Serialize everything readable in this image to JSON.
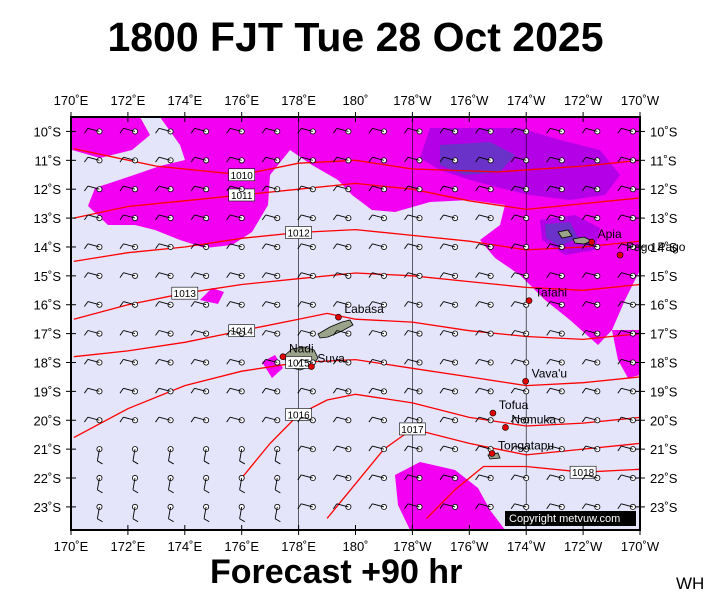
{
  "title": "1800 FJT Tue 28 Oct 2025",
  "footer": "Forecast +90 hr",
  "corner_tag": "WH",
  "copyright": "Copyright metvuw.com",
  "colors": {
    "background": "#e4e4fa",
    "rain_light": "#f300f3",
    "rain_medium": "#b400e6",
    "rain_heavy": "#6a32c8",
    "isobar": "#ff0000",
    "land": "#9aa38a",
    "frame": "#000000"
  },
  "lon_labels": [
    "170˚E",
    "172˚E",
    "174˚E",
    "176˚E",
    "178˚E",
    "180˚",
    "178˚W",
    "176˚W",
    "174˚W",
    "172˚W",
    "170˚W"
  ],
  "lat_labels": [
    "10˚S",
    "11˚S",
    "12˚S",
    "13˚S",
    "14˚S",
    "15˚S",
    "16˚S",
    "17˚S",
    "18˚S",
    "19˚S",
    "20˚S",
    "21˚S",
    "22˚S",
    "23˚S"
  ],
  "isobars": [
    {
      "value": "1010",
      "pts": [
        [
          170.1,
          -10.6
        ],
        [
          173,
          -11.2
        ],
        [
          176,
          -11.5
        ],
        [
          178,
          -11.1
        ],
        [
          180,
          -11.0
        ],
        [
          182,
          -11.3
        ],
        [
          185,
          -11.4
        ],
        [
          188,
          -11.2
        ],
        [
          190,
          -11.0
        ]
      ]
    },
    {
      "value": "1011",
      "pts": [
        [
          170.1,
          -13.0
        ],
        [
          172,
          -12.6
        ],
        [
          174,
          -12.4
        ],
        [
          176,
          -12.2
        ],
        [
          178,
          -12.0
        ],
        [
          180,
          -11.8
        ],
        [
          182,
          -12.0
        ],
        [
          184,
          -12.4
        ],
        [
          186,
          -12.7
        ],
        [
          188,
          -12.5
        ],
        [
          190,
          -12.3
        ]
      ]
    },
    {
      "value": "1012",
      "pts": [
        [
          170.1,
          -14.5
        ],
        [
          172,
          -14.2
        ],
        [
          174,
          -14.0
        ],
        [
          176,
          -13.7
        ],
        [
          178,
          -13.5
        ],
        [
          180,
          -13.4
        ],
        [
          182,
          -13.6
        ],
        [
          184,
          -13.8
        ],
        [
          186,
          -14.1
        ],
        [
          188,
          -14.0
        ],
        [
          190,
          -13.8
        ]
      ]
    },
    {
      "value": "1013",
      "pts": [
        [
          170.1,
          -16.5
        ],
        [
          172,
          -16.0
        ],
        [
          174,
          -15.6
        ],
        [
          176,
          -15.3
        ],
        [
          178,
          -15.1
        ],
        [
          180,
          -14.9
        ],
        [
          182,
          -15.0
        ],
        [
          184,
          -15.2
        ],
        [
          186,
          -15.4
        ],
        [
          188,
          -15.5
        ],
        [
          190,
          -15.3
        ]
      ]
    },
    {
      "value": "1014",
      "pts": [
        [
          170.1,
          -17.8
        ],
        [
          172,
          -17.6
        ],
        [
          174,
          -17.3
        ],
        [
          176,
          -16.9
        ],
        [
          178,
          -16.5
        ],
        [
          179,
          -16.3
        ],
        [
          180,
          -16.5
        ],
        [
          182,
          -16.6
        ],
        [
          184,
          -16.9
        ],
        [
          186,
          -17.1
        ],
        [
          188,
          -17.2
        ],
        [
          190,
          -17.0
        ]
      ]
    },
    {
      "value": "1015",
      "pts": [
        [
          170.1,
          -20.6
        ],
        [
          172,
          -19.6
        ],
        [
          174,
          -18.8
        ],
        [
          176,
          -18.3
        ],
        [
          178,
          -18.0
        ],
        [
          180,
          -17.9
        ],
        [
          182,
          -18.2
        ],
        [
          184,
          -18.5
        ],
        [
          186,
          -18.8
        ],
        [
          188,
          -18.7
        ],
        [
          190,
          -18.5
        ]
      ]
    },
    {
      "value": "1016",
      "pts": [
        [
          176,
          -22.0
        ],
        [
          177,
          -20.8
        ],
        [
          178,
          -19.8
        ],
        [
          179,
          -19.3
        ],
        [
          180,
          -19.1
        ],
        [
          182,
          -19.4
        ],
        [
          184,
          -19.9
        ],
        [
          186,
          -20.2
        ],
        [
          188,
          -20.1
        ],
        [
          190,
          -19.9
        ]
      ]
    },
    {
      "value": "1017",
      "pts": [
        [
          179,
          -23.4
        ],
        [
          180,
          -22.2
        ],
        [
          181,
          -21.0
        ],
        [
          182,
          -20.3
        ],
        [
          184,
          -20.8
        ],
        [
          186,
          -21.2
        ],
        [
          188,
          -21.0
        ],
        [
          190,
          -20.8
        ]
      ]
    },
    {
      "value": "1018",
      "pts": [
        [
          182.5,
          -23.4
        ],
        [
          183.5,
          -22.4
        ],
        [
          184.5,
          -21.6
        ],
        [
          186,
          -21.6
        ],
        [
          188,
          -21.8
        ],
        [
          190,
          -21.7
        ]
      ]
    }
  ],
  "places": [
    {
      "name": "Apia",
      "lon": 188.3,
      "lat": -13.83
    },
    {
      "name": "Pago Pago",
      "lon": 189.3,
      "lat": -14.28
    },
    {
      "name": "Tafahi",
      "lon": 186.1,
      "lat": -15.86
    },
    {
      "name": "Labasa",
      "lon": 179.4,
      "lat": -16.43
    },
    {
      "name": "Nadi",
      "lon": 177.45,
      "lat": -17.8
    },
    {
      "name": "Suva",
      "lon": 178.45,
      "lat": -18.14
    },
    {
      "name": "Vava'u",
      "lon": 185.98,
      "lat": -18.65
    },
    {
      "name": "Tofua",
      "lon": 184.83,
      "lat": -19.75
    },
    {
      "name": "Nomuka",
      "lon": 185.27,
      "lat": -20.25
    },
    {
      "name": "Tongatapu",
      "lon": 184.8,
      "lat": -21.15
    }
  ]
}
